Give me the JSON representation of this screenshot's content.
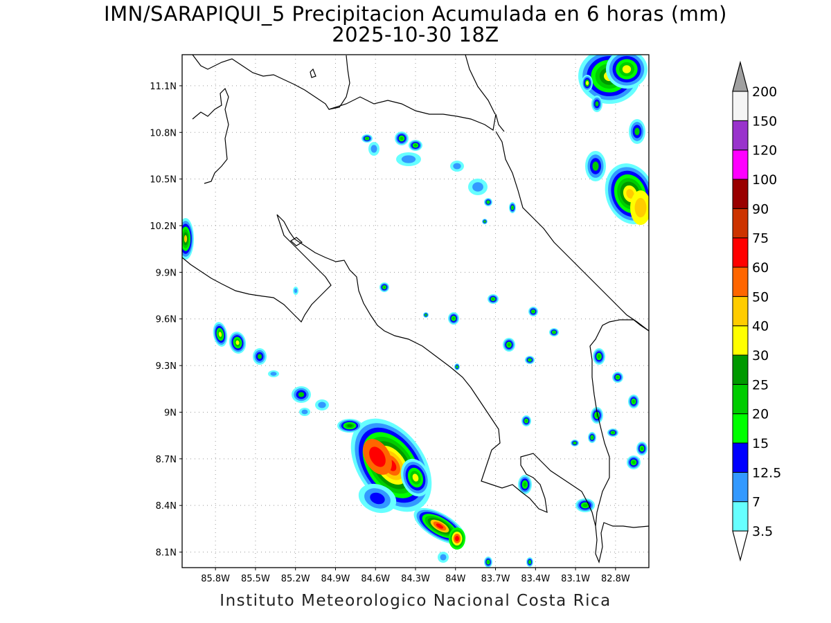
{
  "title": {
    "line1": "IMN/SARAPIQUI_5 Precipitacion Acumulada en 6 horas (mm)",
    "line2": "2025-10-30 18Z"
  },
  "footer": "Instituto Meteorologico Nacional Costa Rica",
  "axes": {
    "lon_range": [
      -86.05,
      -82.55
    ],
    "lat_range": [
      8.0,
      11.3
    ],
    "lat_ticks": [
      "11.1N",
      "10.8N",
      "10.5N",
      "10.2N",
      "9.9N",
      "9.6N",
      "9.3N",
      "9N",
      "8.7N",
      "8.4N",
      "8.1N"
    ],
    "lat_values": [
      11.1,
      10.8,
      10.5,
      10.2,
      9.9,
      9.6,
      9.3,
      9.0,
      8.7,
      8.4,
      8.1
    ],
    "lon_ticks": [
      "85.8W",
      "85.5W",
      "85.2W",
      "84.9W",
      "84.6W",
      "84.3W",
      "84W",
      "83.7W",
      "83.4W",
      "83.1W",
      "82.8W"
    ],
    "lon_values": [
      -85.8,
      -85.5,
      -85.2,
      -84.9,
      -84.6,
      -84.3,
      -84.0,
      -83.7,
      -83.4,
      -83.1,
      -82.8
    ],
    "grid": true
  },
  "colorbar": {
    "labels": [
      "3.5",
      "7",
      "12.5",
      "15",
      "20",
      "25",
      "30",
      "40",
      "50",
      "60",
      "75",
      "90",
      "100",
      "120",
      "150",
      "200"
    ],
    "colors": [
      "#66ffff",
      "#3399ff",
      "#0000ff",
      "#00ff00",
      "#00cc00",
      "#009900",
      "#ffff00",
      "#ffcc00",
      "#ff6600",
      "#ff0000",
      "#cc3300",
      "#990000",
      "#ff00ff",
      "#9933cc",
      "#f5f5f5",
      "#a0a0a0"
    ]
  }
}
